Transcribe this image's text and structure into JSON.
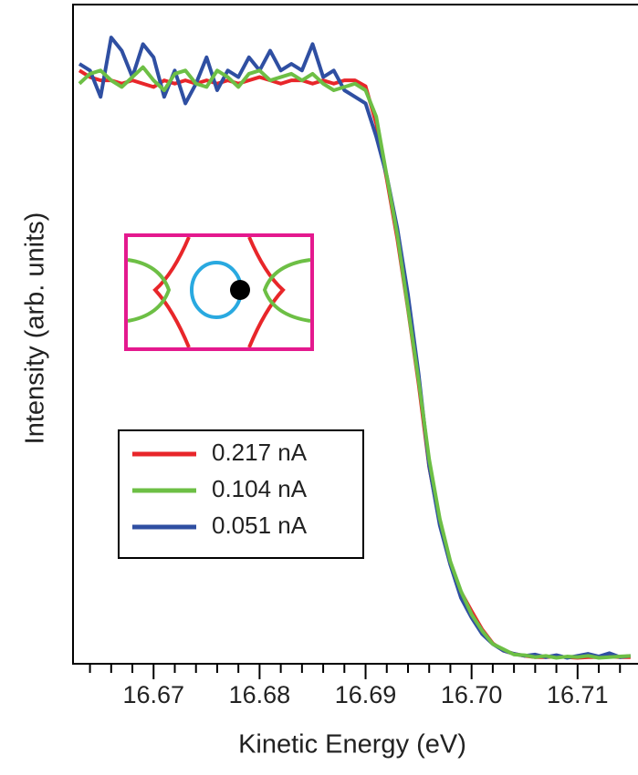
{
  "chart_data": {
    "type": "line",
    "xlabel": "Kinetic Energy (eV)",
    "ylabel": "Intensity (arb. units)",
    "xlim": [
      16.6624,
      16.7157
    ],
    "ylim": [
      0,
      1
    ],
    "xticks": [
      16.67,
      16.68,
      16.69,
      {
        "value": 16.7,
        "label": "16.70"
      },
      16.71
    ],
    "xminorticks": [
      16.664,
      16.666,
      16.668,
      16.672,
      16.674,
      16.676,
      16.678,
      16.682,
      16.684,
      16.686,
      16.688,
      16.692,
      16.694,
      16.696,
      16.698,
      16.702,
      16.704,
      16.706,
      16.708,
      16.712,
      16.714
    ],
    "x": [
      16.663,
      16.664,
      16.665,
      16.666,
      16.667,
      16.668,
      16.669,
      16.67,
      16.671,
      16.672,
      16.673,
      16.674,
      16.675,
      16.676,
      16.677,
      16.678,
      16.679,
      16.68,
      16.681,
      16.682,
      16.683,
      16.684,
      16.685,
      16.686,
      16.687,
      16.688,
      16.689,
      16.69,
      16.691,
      16.692,
      16.693,
      16.694,
      16.695,
      16.696,
      16.697,
      16.698,
      16.699,
      16.7,
      16.701,
      16.702,
      16.703,
      16.704,
      16.705,
      16.706,
      16.707,
      16.708,
      16.709,
      16.71,
      16.711,
      16.712,
      16.713,
      16.714,
      16.715
    ],
    "series": [
      {
        "name": "0.217 nA",
        "color": "#e8262a",
        "values": [
          0.9,
          0.89,
          0.885,
          0.885,
          0.88,
          0.885,
          0.88,
          0.875,
          0.885,
          0.88,
          0.885,
          0.88,
          0.885,
          0.88,
          0.885,
          0.88,
          0.885,
          0.89,
          0.885,
          0.88,
          0.885,
          0.885,
          0.88,
          0.885,
          0.88,
          0.885,
          0.885,
          0.876,
          0.82,
          0.735,
          0.644,
          0.538,
          0.425,
          0.299,
          0.214,
          0.151,
          0.109,
          0.08,
          0.052,
          0.031,
          0.02,
          0.015,
          0.012,
          0.01,
          0.01,
          0.011,
          0.01,
          0.009,
          0.01,
          0.01,
          0.011,
          0.01,
          0.01
        ]
      },
      {
        "name": "0.104 nA",
        "color": "#6dbf45",
        "values": [
          0.88,
          0.895,
          0.9,
          0.885,
          0.875,
          0.89,
          0.905,
          0.885,
          0.87,
          0.895,
          0.9,
          0.88,
          0.875,
          0.9,
          0.89,
          0.875,
          0.895,
          0.9,
          0.885,
          0.89,
          0.895,
          0.885,
          0.895,
          0.88,
          0.87,
          0.875,
          0.88,
          0.87,
          0.83,
          0.74,
          0.65,
          0.54,
          0.43,
          0.31,
          0.22,
          0.155,
          0.11,
          0.075,
          0.05,
          0.03,
          0.022,
          0.014,
          0.013,
          0.01,
          0.012,
          0.009,
          0.011,
          0.01,
          0.012,
          0.009,
          0.01,
          0.011,
          0.012
        ]
      },
      {
        "name": "0.051 nA",
        "color": "#2f4fa2",
        "values": [
          0.91,
          0.9,
          0.86,
          0.95,
          0.93,
          0.89,
          0.94,
          0.92,
          0.86,
          0.9,
          0.85,
          0.88,
          0.92,
          0.87,
          0.9,
          0.89,
          0.92,
          0.9,
          0.93,
          0.9,
          0.91,
          0.9,
          0.94,
          0.89,
          0.9,
          0.87,
          0.86,
          0.85,
          0.8,
          0.74,
          0.66,
          0.56,
          0.44,
          0.3,
          0.21,
          0.15,
          0.1,
          0.07,
          0.045,
          0.03,
          0.02,
          0.015,
          0.012,
          0.014,
          0.01,
          0.013,
          0.009,
          0.012,
          0.015,
          0.011,
          0.016,
          0.01,
          0.012
        ]
      }
    ]
  }
}
